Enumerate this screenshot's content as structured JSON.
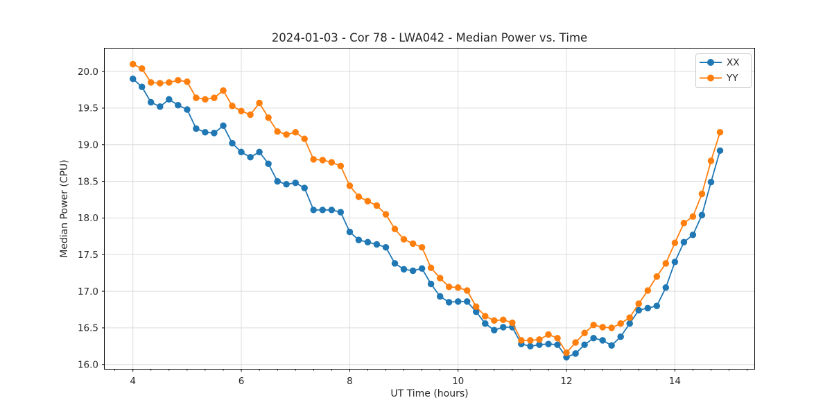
{
  "chart_data": {
    "type": "line",
    "title": "2024-01-03 - Cor 78 - LWA042 - Median Power vs. Time",
    "xlabel": "UT Time (hours)",
    "ylabel": "Median Power (CPU)",
    "xlim": [
      3.473,
      15.473
    ],
    "ylim": [
      15.936,
      20.318
    ],
    "x_major_ticks": [
      4,
      6,
      8,
      10,
      12,
      14
    ],
    "x_minor_step": 0.33333,
    "y_major_ticks": [
      16.0,
      16.5,
      17.0,
      17.5,
      18.0,
      18.5,
      19.0,
      19.5,
      20.0
    ],
    "grid": true,
    "legend_position": "upper right",
    "legend_labels": [
      "XX",
      "YY"
    ],
    "x": [
      4.0,
      4.167,
      4.333,
      4.5,
      4.667,
      4.833,
      5.0,
      5.167,
      5.333,
      5.5,
      5.667,
      5.833,
      6.0,
      6.167,
      6.333,
      6.5,
      6.667,
      6.833,
      7.0,
      7.167,
      7.333,
      7.5,
      7.667,
      7.833,
      8.0,
      8.167,
      8.333,
      8.5,
      8.667,
      8.833,
      9.0,
      9.167,
      9.333,
      9.5,
      9.667,
      9.833,
      10.0,
      10.167,
      10.333,
      10.5,
      10.667,
      10.833,
      11.0,
      11.167,
      11.333,
      11.5,
      11.667,
      11.833,
      12.0,
      12.167,
      12.333,
      12.5,
      12.667,
      12.833,
      13.0,
      13.167,
      13.333,
      13.5,
      13.667,
      13.833,
      14.0,
      14.167,
      14.333,
      14.5,
      14.667,
      14.833
    ],
    "series": [
      {
        "name": "XX",
        "color": "#1f77b4",
        "values": [
          19.9,
          19.79,
          19.58,
          19.52,
          19.62,
          19.54,
          19.48,
          19.22,
          19.17,
          19.16,
          19.26,
          19.02,
          18.9,
          18.83,
          18.9,
          18.74,
          18.5,
          18.46,
          18.48,
          18.41,
          18.11,
          18.11,
          18.11,
          18.08,
          17.81,
          17.7,
          17.67,
          17.64,
          17.6,
          17.38,
          17.3,
          17.28,
          17.31,
          17.1,
          16.93,
          16.85,
          16.86,
          16.86,
          16.72,
          16.56,
          16.47,
          16.51,
          16.51,
          16.28,
          16.25,
          16.27,
          16.28,
          16.27,
          16.1,
          16.15,
          16.27,
          16.36,
          16.33,
          16.26,
          16.38,
          16.56,
          16.74,
          16.77,
          16.8,
          17.05,
          17.4,
          17.67,
          17.77,
          18.04,
          18.49,
          18.92
        ]
      },
      {
        "name": "YY",
        "color": "#ff7f0e",
        "values": [
          20.1,
          20.04,
          19.85,
          19.84,
          19.85,
          19.88,
          19.86,
          19.64,
          19.62,
          19.64,
          19.74,
          19.53,
          19.46,
          19.41,
          19.57,
          19.37,
          19.18,
          19.14,
          19.17,
          19.08,
          18.8,
          18.79,
          18.76,
          18.71,
          18.44,
          18.29,
          18.23,
          18.17,
          18.05,
          17.85,
          17.71,
          17.65,
          17.6,
          17.32,
          17.18,
          17.06,
          17.05,
          17.01,
          16.79,
          16.66,
          16.6,
          16.61,
          16.57,
          16.33,
          16.33,
          16.34,
          16.41,
          16.36,
          16.16,
          16.3,
          16.43,
          16.54,
          16.51,
          16.5,
          16.56,
          16.64,
          16.83,
          17.01,
          17.2,
          17.38,
          17.66,
          17.93,
          18.02,
          18.33,
          18.78,
          19.17
        ]
      }
    ],
    "style": {
      "grid_color": "#dcdcdc",
      "spine_color": "#000000",
      "background": "#ffffff",
      "line_width": 1.8,
      "marker_radius": 4.75
    }
  }
}
